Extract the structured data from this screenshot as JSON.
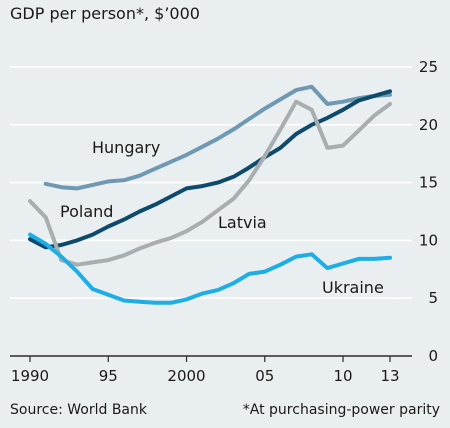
{
  "chart_data": {
    "type": "line",
    "title": "GDP per person*, $’000",
    "xlabel": "",
    "ylabel": "",
    "xlim": [
      1990,
      2013
    ],
    "ylim": [
      0,
      25
    ],
    "y_ticks": [
      0,
      5,
      10,
      15,
      20,
      25
    ],
    "x_ticks": [
      1990,
      1995,
      2000,
      2005,
      2010,
      2013
    ],
    "x_tick_labels": [
      "1990",
      "95",
      "2000",
      "05",
      "10",
      "13"
    ],
    "grid": "horizontal",
    "source": "Source: World Bank",
    "footnote": "*At purchasing-power parity",
    "series": [
      {
        "name": "Hungary",
        "color": "#6f99b3",
        "x": [
          1991,
          1992,
          1993,
          1994,
          1995,
          1996,
          1997,
          1998,
          1999,
          2000,
          2001,
          2002,
          2003,
          2004,
          2005,
          2006,
          2007,
          2008,
          2009,
          2010,
          2011,
          2012,
          2013
        ],
        "values": [
          14.9,
          14.6,
          14.5,
          14.8,
          15.1,
          15.2,
          15.6,
          16.2,
          16.8,
          17.4,
          18.1,
          18.8,
          19.6,
          20.5,
          21.4,
          22.2,
          23.0,
          23.3,
          21.8,
          22.0,
          22.3,
          22.5,
          22.6
        ]
      },
      {
        "name": "Poland",
        "color": "#0e4a6b",
        "x": [
          1990,
          1991,
          1992,
          1993,
          1994,
          1995,
          1996,
          1997,
          1998,
          1999,
          2000,
          2001,
          2002,
          2003,
          2004,
          2005,
          2006,
          2007,
          2008,
          2009,
          2010,
          2011,
          2012,
          2013
        ],
        "values": [
          10.1,
          9.4,
          9.6,
          10.0,
          10.5,
          11.2,
          11.8,
          12.5,
          13.1,
          13.8,
          14.5,
          14.7,
          15.0,
          15.5,
          16.3,
          17.2,
          18.0,
          19.2,
          20.0,
          20.6,
          21.3,
          22.1,
          22.5,
          22.9
        ]
      },
      {
        "name": "Latvia",
        "color": "#a8adaf",
        "x": [
          1990,
          1991,
          1992,
          1993,
          1994,
          1995,
          1996,
          1997,
          1998,
          1999,
          2000,
          2001,
          2002,
          2003,
          2004,
          2005,
          2006,
          2007,
          2008,
          2009,
          2010,
          2011,
          2012,
          2013
        ],
        "values": [
          13.4,
          12.0,
          8.3,
          7.9,
          8.1,
          8.3,
          8.7,
          9.3,
          9.8,
          10.2,
          10.8,
          11.6,
          12.6,
          13.6,
          15.2,
          17.3,
          19.6,
          22.0,
          21.3,
          18.0,
          18.2,
          19.5,
          20.8,
          21.8
        ]
      },
      {
        "name": "Ukraine",
        "color": "#1eaee6",
        "x": [
          1990,
          1991,
          1992,
          1993,
          1994,
          1995,
          1996,
          1997,
          1998,
          1999,
          2000,
          2001,
          2002,
          2003,
          2004,
          2005,
          2006,
          2007,
          2008,
          2009,
          2010,
          2011,
          2012,
          2013
        ],
        "values": [
          10.5,
          9.7,
          8.6,
          7.3,
          5.8,
          5.3,
          4.8,
          4.7,
          4.6,
          4.6,
          4.9,
          5.4,
          5.7,
          6.3,
          7.1,
          7.3,
          7.9,
          8.6,
          8.8,
          7.6,
          8.0,
          8.4,
          8.4,
          8.5
        ]
      }
    ]
  }
}
